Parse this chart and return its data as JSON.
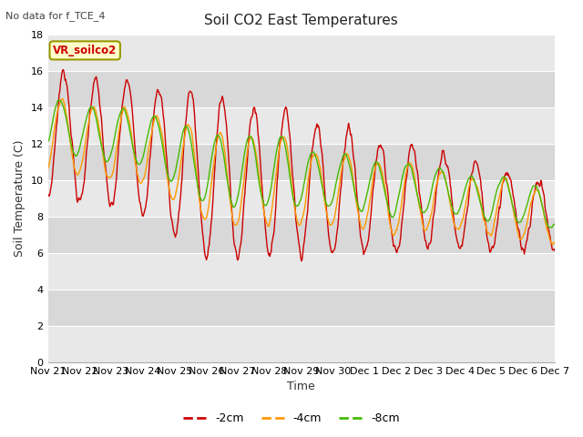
{
  "title": "Soil CO2 East Temperatures",
  "xlabel": "Time",
  "ylabel": "Soil Temperature (C)",
  "no_data_text": "No data for f_TCE_4",
  "vr_label": "VR_soilco2",
  "legend_entries": [
    "-2cm",
    "-4cm",
    "-8cm"
  ],
  "line_colors": [
    "#cc0000",
    "#ff9900",
    "#44bb00"
  ],
  "ylim": [
    0,
    18
  ],
  "background_color": "#ffffff",
  "plot_bg_color": "#e0e0e0",
  "band_light": "#e8e8e8",
  "band_dark": "#d8d8d8",
  "num_days": 16,
  "figwidth": 6.4,
  "figheight": 4.8,
  "dpi": 100
}
